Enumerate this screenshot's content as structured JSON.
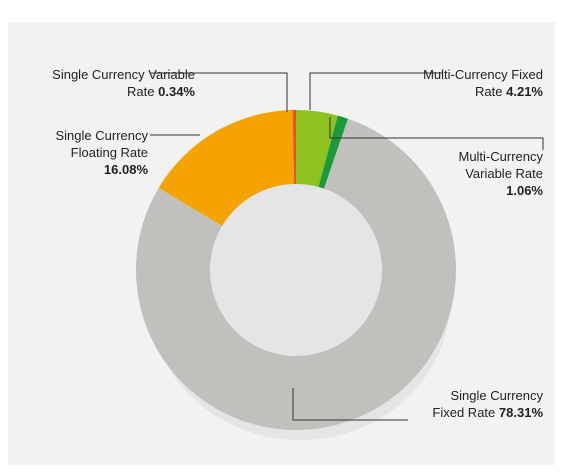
{
  "chart_data": {
    "type": "donut",
    "series": [
      {
        "name": "Multi-Currency Fixed Rate",
        "color": "#8dc21f",
        "values": [
          4.21
        ],
        "value_labels": [
          "4.21%"
        ]
      },
      {
        "name": "Multi-Currency Variable Rate",
        "color": "#1a9a3a",
        "values": [
          1.06
        ],
        "value_labels": [
          "1.06%"
        ]
      },
      {
        "name": "Single Currency Fixed Rate",
        "color": "#c1c0bc",
        "values": [
          78.31
        ],
        "value_labels": [
          "78.31%"
        ]
      },
      {
        "name": "Single Currency Floating Rate",
        "color": "#f5a300",
        "values": [
          16.08
        ],
        "value_labels": [
          "16.08%"
        ]
      },
      {
        "name": "Single Currency Variable Rate",
        "color": "#e8531d",
        "values": [
          0.34
        ],
        "value_labels": [
          "0.34%"
        ]
      }
    ]
  }
}
